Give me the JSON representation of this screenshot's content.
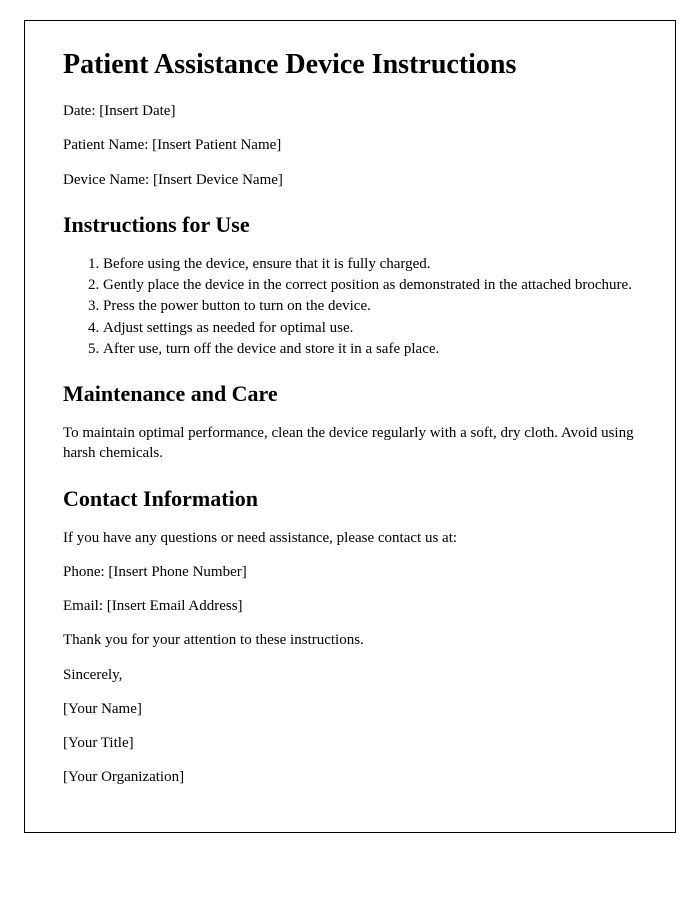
{
  "title": "Patient Assistance Device Instructions",
  "fields": {
    "date": "Date: [Insert Date]",
    "patient_name": "Patient Name: [Insert Patient Name]",
    "device_name": "Device Name: [Insert Device Name]"
  },
  "sections": {
    "instructions": {
      "heading": "Instructions for Use",
      "items": [
        "Before using the device, ensure that it is fully charged.",
        "Gently place the device in the correct position as demonstrated in the attached brochure.",
        "Press the power button to turn on the device.",
        "Adjust settings as needed for optimal use.",
        "After use, turn off the device and store it in a safe place."
      ]
    },
    "maintenance": {
      "heading": "Maintenance and Care",
      "body": "To maintain optimal performance, clean the device regularly with a soft, dry cloth. Avoid using harsh chemicals."
    },
    "contact": {
      "heading": "Contact Information",
      "intro": "If you have any questions or need assistance, please contact us at:",
      "phone": "Phone: [Insert Phone Number]",
      "email": "Email: [Insert Email Address]"
    }
  },
  "closing": {
    "thanks": "Thank you for your attention to these instructions.",
    "signoff": "Sincerely,",
    "name": "[Your Name]",
    "title": "[Your Title]",
    "organization": "[Your Organization]"
  }
}
